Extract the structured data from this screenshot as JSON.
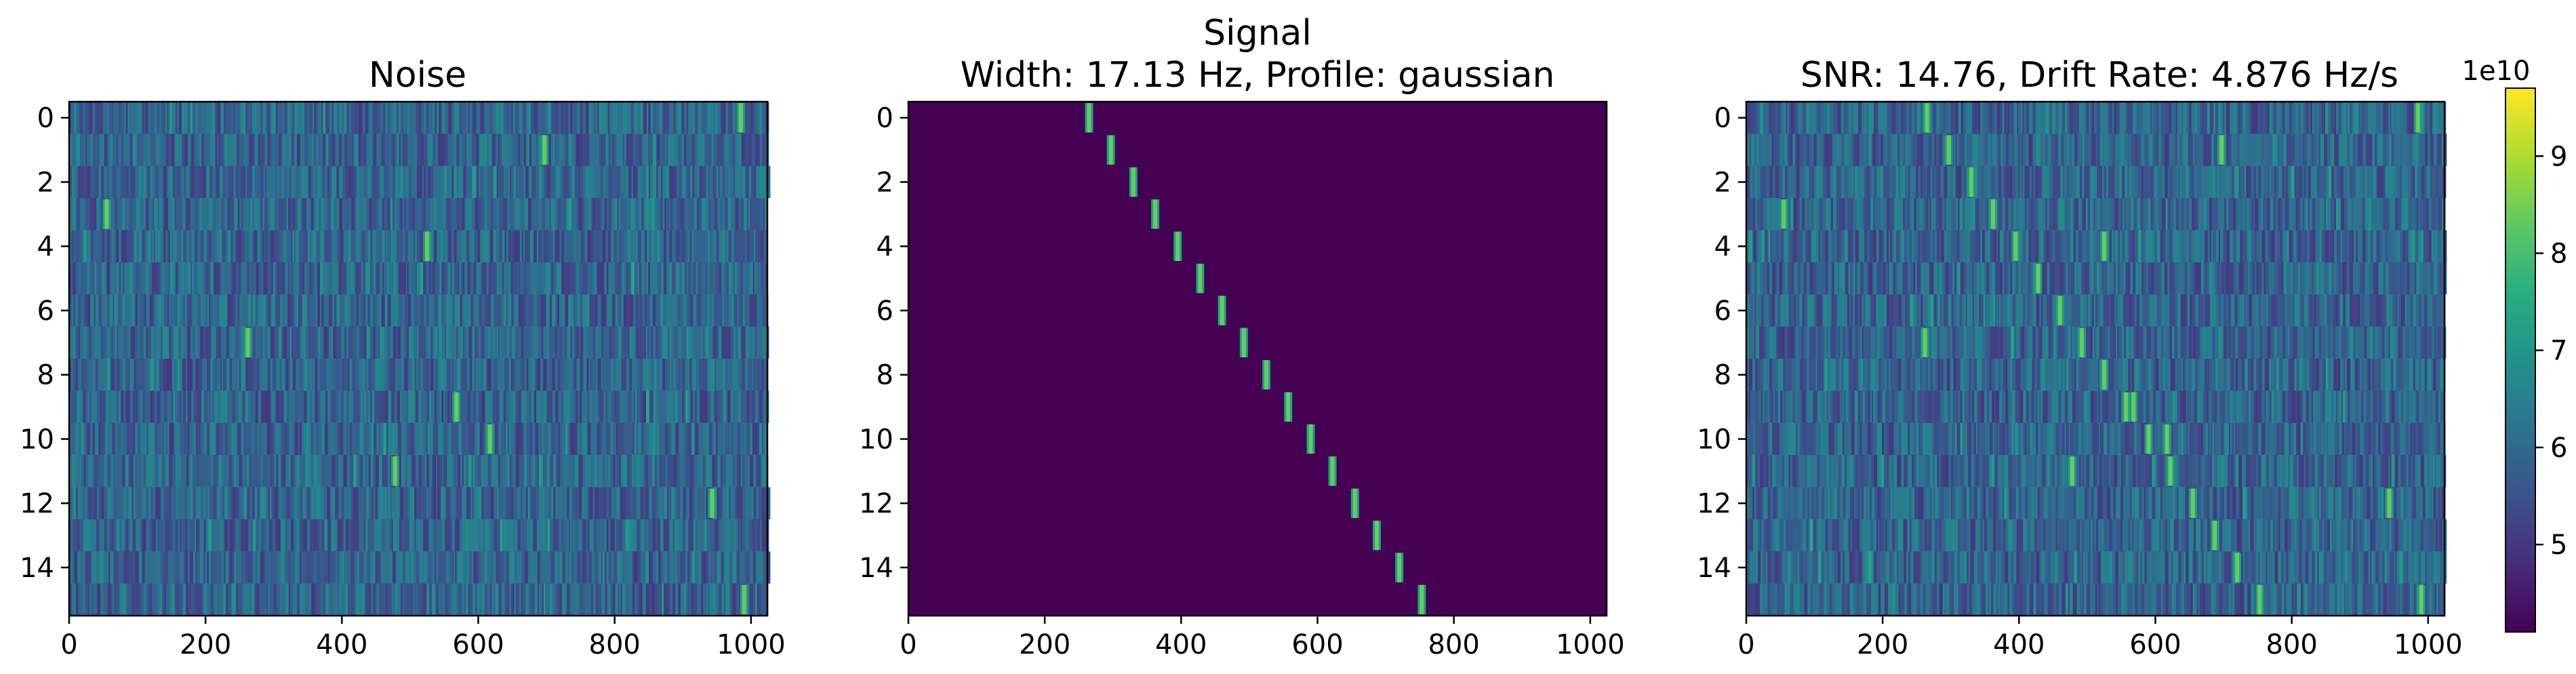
{
  "figure": {
    "colormap": "viridis",
    "colors": {
      "background": "#440154",
      "frame": "#000000",
      "text": "#000000"
    }
  },
  "chart_data": [
    {
      "type": "heatmap",
      "title": "Noise",
      "xlim": [
        0,
        1024
      ],
      "ylim": [
        15.5,
        -0.5
      ],
      "xticks": [
        0,
        200,
        400,
        600,
        800,
        1000
      ],
      "yticks": [
        0,
        2,
        4,
        6,
        8,
        10,
        12,
        14
      ],
      "xlabel": "",
      "ylabel": "",
      "rows": 16,
      "value_range": [
        50000000000.0,
        68000000000.0
      ],
      "bright_spots": [
        {
          "row": 0,
          "x": 985
        },
        {
          "row": 1,
          "x": 697
        },
        {
          "row": 3,
          "x": 55
        },
        {
          "row": 4,
          "x": 525
        },
        {
          "row": 7,
          "x": 262
        },
        {
          "row": 9,
          "x": 568
        },
        {
          "row": 10,
          "x": 617
        },
        {
          "row": 11,
          "x": 478
        },
        {
          "row": 12,
          "x": 943
        },
        {
          "row": 15,
          "x": 990
        }
      ]
    },
    {
      "type": "heatmap",
      "title": "Signal\nWidth: 17.13 Hz, Profile: gaussian",
      "title_lines": [
        "Signal",
        "Width: 17.13 Hz, Profile: gaussian"
      ],
      "xlim": [
        0,
        1024
      ],
      "ylim": [
        15.5,
        -0.5
      ],
      "xticks": [
        0,
        200,
        400,
        600,
        800,
        1000
      ],
      "yticks": [
        0,
        2,
        4,
        6,
        8,
        10,
        12,
        14
      ],
      "xlabel": "",
      "ylabel": "",
      "rows": 16,
      "signal_width_hz": 17.13,
      "signal_profile": "gaussian",
      "signal_x": [
        265,
        297,
        330,
        362,
        395,
        428,
        460,
        492,
        525,
        557,
        590,
        622,
        655,
        687,
        720,
        753
      ]
    },
    {
      "type": "heatmap",
      "title": "SNR: 14.76, Drift Rate: 4.876 Hz/s",
      "xlim": [
        0,
        1024
      ],
      "ylim": [
        15.5,
        -0.5
      ],
      "xticks": [
        0,
        200,
        400,
        600,
        800,
        1000
      ],
      "yticks": [
        0,
        2,
        4,
        6,
        8,
        10,
        12,
        14
      ],
      "xlabel": "",
      "ylabel": "",
      "rows": 16,
      "snr": 14.76,
      "drift_rate_hz_s": 4.876,
      "value_range": [
        50000000000.0,
        68000000000.0
      ],
      "signal_x": [
        265,
        297,
        330,
        362,
        395,
        428,
        460,
        492,
        525,
        557,
        590,
        622,
        655,
        687,
        720,
        753
      ]
    }
  ],
  "colorbar": {
    "offset_label": "1e10",
    "range": [
      4.1,
      9.7
    ],
    "ticks": [
      5,
      6,
      7,
      8,
      9
    ],
    "tick_labels": [
      "5",
      "6",
      "7",
      "8",
      "9"
    ]
  }
}
